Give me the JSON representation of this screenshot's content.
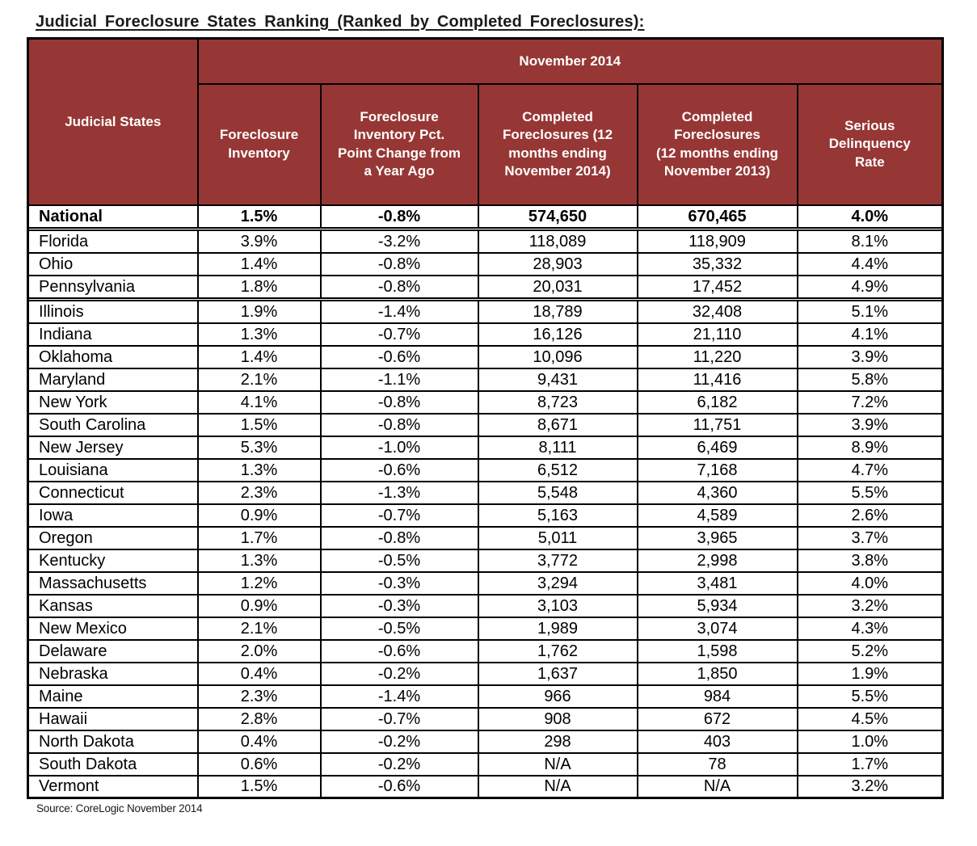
{
  "title": "Judicial Foreclosure States Ranking (Ranked by Completed Foreclosures):",
  "source_note": "Source: CoreLogic November 2014",
  "colors": {
    "header_background": "#963735",
    "header_text": "#FFFFFF",
    "border": "#000000",
    "body_background": "#FFFFFF",
    "body_text": "#000000"
  },
  "table": {
    "group_header": "November 2014",
    "columns": [
      "Judicial States",
      "Foreclosure\nInventory",
      "Foreclosure\nInventory Pct.\nPoint Change from\na Year Ago",
      "Completed\nForeclosures (12\nmonths ending\nNovember 2014)",
      "Completed\nForeclosures\n(12 months ending\nNovember 2013)",
      "Serious\nDelinquency\nRate"
    ],
    "rows": [
      {
        "state": "National",
        "values": [
          "1.5%",
          "-0.8%",
          "574,650",
          "670,465",
          "4.0%"
        ],
        "bold": true,
        "gap_above": false
      },
      {
        "state": "Florida",
        "values": [
          "3.9%",
          "-3.2%",
          "118,089",
          "118,909",
          "8.1%"
        ],
        "bold": false,
        "gap_above": true
      },
      {
        "state": "Ohio",
        "values": [
          "1.4%",
          "-0.8%",
          "28,903",
          "35,332",
          "4.4%"
        ],
        "bold": false,
        "gap_above": false
      },
      {
        "state": "Pennsylvania",
        "values": [
          "1.8%",
          "-0.8%",
          "20,031",
          "17,452",
          "4.9%"
        ],
        "bold": false,
        "gap_above": false
      },
      {
        "state": "Illinois",
        "values": [
          "1.9%",
          "-1.4%",
          "18,789",
          "32,408",
          "5.1%"
        ],
        "bold": false,
        "gap_above": true
      },
      {
        "state": "Indiana",
        "values": [
          "1.3%",
          "-0.7%",
          "16,126",
          "21,110",
          "4.1%"
        ],
        "bold": false,
        "gap_above": false
      },
      {
        "state": "Oklahoma",
        "values": [
          "1.4%",
          "-0.6%",
          "10,096",
          "11,220",
          "3.9%"
        ],
        "bold": false,
        "gap_above": false
      },
      {
        "state": "Maryland",
        "values": [
          "2.1%",
          "-1.1%",
          "9,431",
          "11,416",
          "5.8%"
        ],
        "bold": false,
        "gap_above": false
      },
      {
        "state": "New York",
        "values": [
          "4.1%",
          "-0.8%",
          "8,723",
          "6,182",
          "7.2%"
        ],
        "bold": false,
        "gap_above": false
      },
      {
        "state": "South Carolina",
        "values": [
          "1.5%",
          "-0.8%",
          "8,671",
          "11,751",
          "3.9%"
        ],
        "bold": false,
        "gap_above": false
      },
      {
        "state": "New Jersey",
        "values": [
          "5.3%",
          "-1.0%",
          "8,111",
          "6,469",
          "8.9%"
        ],
        "bold": false,
        "gap_above": false
      },
      {
        "state": "Louisiana",
        "values": [
          "1.3%",
          "-0.6%",
          "6,512",
          "7,168",
          "4.7%"
        ],
        "bold": false,
        "gap_above": false
      },
      {
        "state": "Connecticut",
        "values": [
          "2.3%",
          "-1.3%",
          "5,548",
          "4,360",
          "5.5%"
        ],
        "bold": false,
        "gap_above": false
      },
      {
        "state": "Iowa",
        "values": [
          "0.9%",
          "-0.7%",
          "5,163",
          "4,589",
          "2.6%"
        ],
        "bold": false,
        "gap_above": false
      },
      {
        "state": "Oregon",
        "values": [
          "1.7%",
          "-0.8%",
          "5,011",
          "3,965",
          "3.7%"
        ],
        "bold": false,
        "gap_above": false
      },
      {
        "state": "Kentucky",
        "values": [
          "1.3%",
          "-0.5%",
          "3,772",
          "2,998",
          "3.8%"
        ],
        "bold": false,
        "gap_above": false
      },
      {
        "state": "Massachusetts",
        "values": [
          "1.2%",
          "-0.3%",
          "3,294",
          "3,481",
          "4.0%"
        ],
        "bold": false,
        "gap_above": false
      },
      {
        "state": "Kansas",
        "values": [
          "0.9%",
          "-0.3%",
          "3,103",
          "5,934",
          "3.2%"
        ],
        "bold": false,
        "gap_above": false
      },
      {
        "state": "New Mexico",
        "values": [
          "2.1%",
          "-0.5%",
          "1,989",
          "3,074",
          "4.3%"
        ],
        "bold": false,
        "gap_above": false
      },
      {
        "state": "Delaware",
        "values": [
          "2.0%",
          "-0.6%",
          "1,762",
          "1,598",
          "5.2%"
        ],
        "bold": false,
        "gap_above": false
      },
      {
        "state": "Nebraska",
        "values": [
          "0.4%",
          "-0.2%",
          "1,637",
          "1,850",
          "1.9%"
        ],
        "bold": false,
        "gap_above": false
      },
      {
        "state": "Maine",
        "values": [
          "2.3%",
          "-1.4%",
          "966",
          "984",
          "5.5%"
        ],
        "bold": false,
        "gap_above": false
      },
      {
        "state": "Hawaii",
        "values": [
          "2.8%",
          "-0.7%",
          "908",
          "672",
          "4.5%"
        ],
        "bold": false,
        "gap_above": false
      },
      {
        "state": "North Dakota",
        "values": [
          "0.4%",
          "-0.2%",
          "298",
          "403",
          "1.0%"
        ],
        "bold": false,
        "gap_above": false
      },
      {
        "state": "South Dakota",
        "values": [
          "0.6%",
          "-0.2%",
          "N/A",
          "78",
          "1.7%"
        ],
        "bold": false,
        "gap_above": false
      },
      {
        "state": "Vermont",
        "values": [
          "1.5%",
          "-0.6%",
          "N/A",
          "N/A",
          "3.2%"
        ],
        "bold": false,
        "gap_above": false
      }
    ]
  }
}
